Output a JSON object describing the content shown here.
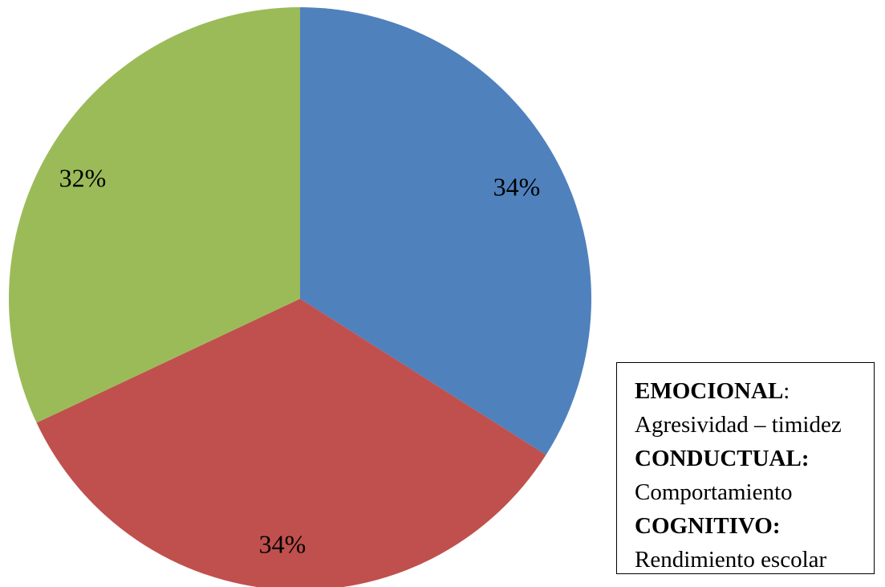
{
  "chart_data": {
    "type": "pie",
    "title": "",
    "start_angle_deg": 0,
    "direction": "clockwise",
    "slices": [
      {
        "value": 34,
        "label": "34%",
        "color": "#4f81bd"
      },
      {
        "value": 34,
        "label": "34%",
        "color": "#c0504d"
      },
      {
        "value": 32,
        "label": "32%",
        "color": "#9bbb59"
      }
    ]
  },
  "legend": {
    "items": [
      {
        "heading": "EMOCIONAL",
        "suffix": ":",
        "detail": "Agresividad – timidez"
      },
      {
        "heading": "CONDUCTUAL:",
        "suffix": "",
        "detail": "Comportamiento"
      },
      {
        "heading": "COGNITIVO:",
        "suffix": "",
        "detail": "Rendimiento escolar"
      }
    ]
  }
}
